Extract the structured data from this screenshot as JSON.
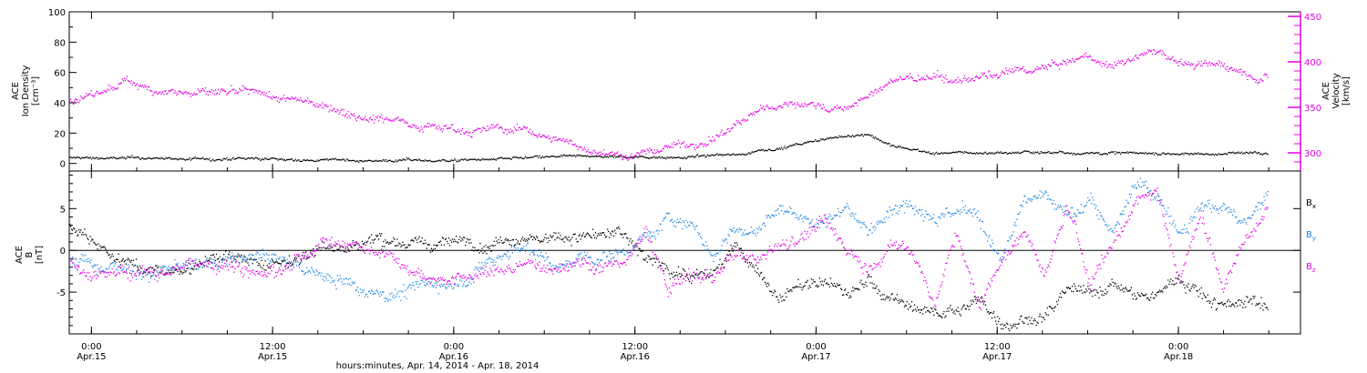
{
  "chart_data": [
    {
      "type": "scatter",
      "panel": "top",
      "ylabel_left": [
        "ACE",
        "Ion Density",
        "[cm⁻³]"
      ],
      "ylabel_right": [
        "ACE",
        "Velocity",
        "[km/s]"
      ],
      "ylim_left": [
        -5,
        100
      ],
      "ylim_right": [
        280,
        455
      ],
      "yticks_left": [
        0,
        20,
        40,
        60,
        80,
        100
      ],
      "yticks_right": [
        300,
        350,
        400,
        450
      ],
      "colors": {
        "density": "#000000",
        "velocity": "#e600e6"
      },
      "series": [
        {
          "key": "density",
          "axis": "left",
          "color": "#000000",
          "x_hours": [
            -2,
            0,
            6,
            12,
            24,
            30,
            36,
            42,
            48,
            52,
            58,
            60,
            66,
            70,
            72,
            76,
            80,
            84,
            90,
            96,
            102,
            106
          ],
          "values": [
            4,
            4,
            3.5,
            3,
            2.5,
            2.5,
            3,
            4,
            4.5,
            5,
            6,
            9,
            16,
            20,
            12,
            7,
            7,
            8,
            8,
            7,
            7,
            8
          ],
          "noise": 1.2
        },
        {
          "key": "velocity",
          "axis": "right",
          "color": "#e600e6",
          "x_hours": [
            -2,
            0,
            3,
            6,
            9,
            12,
            15,
            18,
            21,
            24,
            27,
            30,
            33,
            36,
            39,
            42,
            45,
            48,
            50,
            52,
            54,
            56,
            58,
            60,
            62,
            64,
            66,
            68,
            70,
            72,
            74,
            76,
            78,
            80,
            82,
            84,
            86,
            88,
            90,
            92,
            94,
            96,
            98,
            100,
            102,
            104,
            106
          ],
          "values": [
            358,
            360,
            375,
            372,
            368,
            365,
            360,
            355,
            353,
            345,
            340,
            335,
            330,
            328,
            325,
            315,
            305,
            298,
            300,
            308,
            312,
            318,
            332,
            345,
            352,
            356,
            352,
            350,
            360,
            378,
            382,
            380,
            378,
            385,
            382,
            388,
            392,
            398,
            402,
            396,
            408,
            412,
            402,
            395,
            398,
            392,
            390
          ],
          "noise": 6
        }
      ]
    },
    {
      "type": "scatter",
      "panel": "bottom",
      "ylabel": [
        "ACE",
        "B",
        "[nT]"
      ],
      "ylim": [
        -10,
        9.5
      ],
      "yticks": [
        -5,
        0,
        5
      ],
      "zero_line": true,
      "legend": [
        {
          "label": "B",
          "sub": "x",
          "color": "#000000"
        },
        {
          "label": "B",
          "sub": "y",
          "color": "#1e88e5"
        },
        {
          "label": "B",
          "sub": "z",
          "color": "#e600e6"
        }
      ],
      "series": [
        {
          "key": "bx",
          "color": "#000000",
          "x_hours": [
            -2,
            0,
            3,
            6,
            9,
            12,
            15,
            18,
            21,
            24,
            27,
            30,
            33,
            36,
            39,
            42,
            44,
            48,
            50,
            52,
            54,
            56,
            58,
            60,
            62,
            64,
            66,
            68,
            70,
            72,
            74,
            76,
            78,
            80,
            82,
            84,
            86,
            88,
            90,
            92,
            94,
            96,
            98,
            100,
            102,
            104,
            106
          ],
          "values": [
            3,
            2,
            -1,
            -2,
            -1.5,
            0.5,
            -2,
            -0.5,
            1,
            1.5,
            2,
            0.5,
            1,
            1.5,
            3,
            1.5,
            2,
            1.5,
            -1,
            -2,
            -2.5,
            -2,
            0.5,
            -3,
            -5.5,
            -4.5,
            -4,
            -5.5,
            -4,
            -6,
            -7,
            -7.5,
            -7,
            -6,
            -8,
            -7.5,
            -7,
            -5,
            -6,
            -4,
            -5.5,
            -6,
            -3,
            -5,
            -6,
            -5.5,
            -6
          ],
          "noise": 1.0
        },
        {
          "key": "by",
          "color": "#1e88e5",
          "x_hours": [
            -2,
            0,
            3,
            6,
            9,
            12,
            15,
            18,
            21,
            24,
            27,
            30,
            33,
            36,
            39,
            42,
            44,
            48,
            50,
            52,
            54,
            56,
            58,
            60,
            62,
            64,
            66,
            68,
            70,
            72,
            74,
            76,
            78,
            80,
            82,
            84,
            86,
            88,
            90,
            92,
            94,
            96,
            98,
            100,
            102,
            104,
            106
          ],
          "values": [
            -2,
            -1.5,
            -2,
            -2.5,
            -2,
            -1.5,
            -1,
            -2,
            -3,
            -4,
            -4.5,
            -4,
            -3.5,
            -1,
            0.5,
            -2,
            -1.5,
            0,
            2,
            4,
            3.5,
            -1,
            3,
            2,
            5,
            4,
            3.5,
            6,
            2,
            6.5,
            7,
            6,
            5.5,
            4,
            -2,
            5,
            6,
            3,
            6.5,
            2,
            7,
            6.5,
            3,
            7,
            6,
            3,
            6
          ],
          "noise": 1.1
        },
        {
          "key": "bz",
          "color": "#e600e6",
          "x_hours": [
            -2,
            0,
            3,
            6,
            9,
            12,
            15,
            18,
            21,
            24,
            27,
            30,
            33,
            36,
            39,
            42,
            44,
            48,
            50,
            52,
            54,
            56,
            58,
            60,
            62,
            64,
            66,
            68,
            70,
            72,
            74,
            76,
            78,
            80,
            82,
            84,
            86,
            88,
            90,
            92,
            94,
            96,
            98,
            100,
            102,
            104,
            106
          ],
          "values": [
            -1,
            -2,
            -2.5,
            -2.5,
            -1.5,
            -1,
            -2,
            -1.5,
            2,
            1,
            0,
            -2,
            -3,
            -2.5,
            -2,
            -1.5,
            -1,
            -1.5,
            2,
            -5,
            -3,
            -3.5,
            -1,
            -2,
            1,
            2,
            4,
            0,
            -2,
            1,
            0,
            -6,
            2,
            -7,
            -1,
            2,
            -3,
            5,
            -4,
            0.5,
            6,
            8,
            -3,
            5,
            -4,
            2,
            5
          ],
          "noise": 1.0
        }
      ]
    }
  ],
  "x_axis": {
    "xlim_hours": [
      -2,
      109
    ],
    "ticks": [
      {
        "hour": 0,
        "time": "0:00",
        "date": "Apr.15"
      },
      {
        "hour": 16.33,
        "time": "12:00",
        "date": "Apr.15"
      },
      {
        "hour": 32.66,
        "time": "0:00",
        "date": "Apr.16"
      },
      {
        "hour": 49,
        "time": "12:00",
        "date": "Apr.16"
      },
      {
        "hour": 65.33,
        "time": "0:00",
        "date": "Apr.17"
      },
      {
        "hour": 81.66,
        "time": "12:00",
        "date": "Apr.17"
      },
      {
        "hour": 98,
        "time": "0:00",
        "date": "Apr.18"
      }
    ],
    "minor_per_major": 4,
    "xlabel": "hours:minutes, Apr. 14, 2014 - Apr. 18, 2014"
  }
}
